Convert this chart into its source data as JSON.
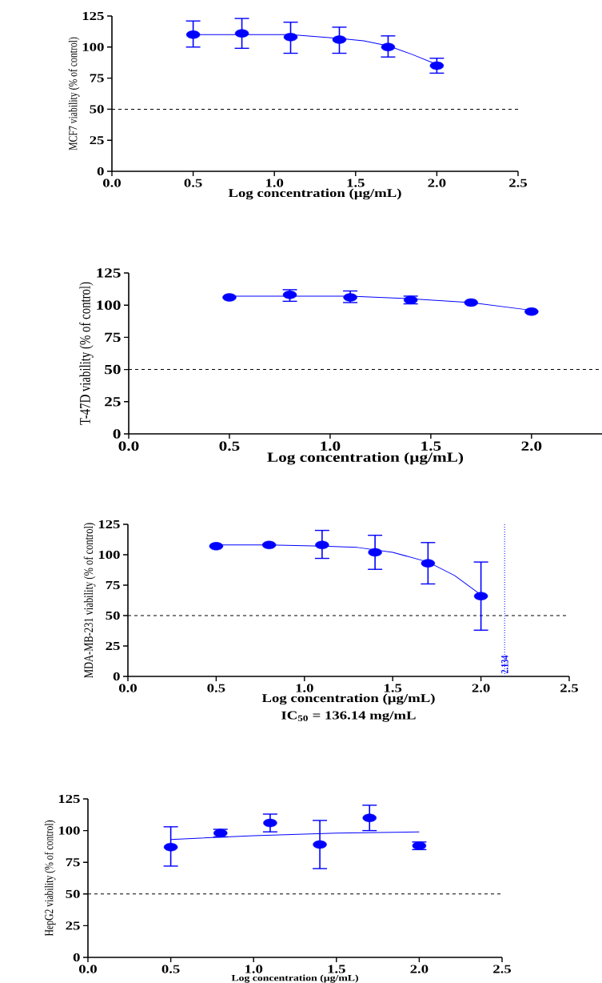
{
  "chart_data": [
    {
      "type": "scatter",
      "xlabel": "Log concentration (µg/mL)",
      "ylabel": "MCF7 viability (% of control)",
      "xlim": [
        0,
        2.5
      ],
      "xticks": [
        {
          "value": 0,
          "label": "0.0"
        },
        0.5,
        {
          "value": 1,
          "label": "1.0"
        },
        1.5,
        {
          "value": 2,
          "label": "2.0"
        },
        2.5
      ],
      "ylim": [
        0,
        125
      ],
      "yticks": [
        0,
        25,
        50,
        75,
        100,
        125
      ],
      "series": [
        {
          "type": "line",
          "color": "#0000ff",
          "marker": "none",
          "x": [
            0.5,
            0.8,
            1.1,
            1.4,
            1.55,
            1.7,
            1.85,
            2.0
          ],
          "values": [
            110,
            110,
            110,
            107,
            105,
            101,
            94,
            86
          ]
        },
        {
          "color": "#0000ff",
          "marker": "circle",
          "x": [
            0.5,
            0.8,
            1.1,
            1.4,
            1.7,
            2.0
          ],
          "values": [
            110,
            111,
            108,
            106,
            100,
            85
          ],
          "errors": [
            [
              100,
              121
            ],
            [
              99,
              123
            ],
            [
              95,
              120
            ],
            [
              95,
              116
            ],
            [
              92,
              109
            ],
            [
              79,
              91
            ]
          ]
        }
      ],
      "ref_lines": [
        {
          "axis": "y",
          "value": 50,
          "color": "#000000",
          "line_style": "dashed"
        }
      ]
    },
    {
      "type": "scatter",
      "xlabel": "Log concentration (µg/mL)",
      "ylabel": "T-47D viability (% of control)",
      "xlim": [
        0,
        2.35
      ],
      "xticks": [
        {
          "value": 0,
          "label": "0.0"
        },
        0.5,
        {
          "value": 1,
          "label": "1.0"
        },
        1.5,
        {
          "value": 2,
          "label": "2.0"
        }
      ],
      "ylim": [
        0,
        125
      ],
      "yticks": [
        0,
        25,
        50,
        75,
        100,
        125
      ],
      "series": [
        {
          "type": "line",
          "color": "#0000ff",
          "marker": "none",
          "x": [
            0.5,
            0.8,
            1.1,
            1.4,
            1.7,
            2.0
          ],
          "values": [
            107,
            107,
            107,
            105,
            102,
            96
          ]
        },
        {
          "color": "#0000ff",
          "marker": "circle",
          "x": [
            0.5,
            0.8,
            1.1,
            1.4,
            1.7,
            2.0
          ],
          "values": [
            106,
            108,
            106,
            104,
            102,
            95
          ],
          "errors": [
            null,
            [
              103,
              112
            ],
            [
              102,
              111
            ],
            [
              101,
              107
            ],
            null,
            null
          ]
        }
      ],
      "ref_lines": [
        {
          "axis": "y",
          "value": 50,
          "color": "#000000",
          "line_style": "dashed"
        }
      ]
    },
    {
      "type": "scatter",
      "xlabel": "Log concentration (µg/mL)",
      "ylabel": "MDA-MB-231 viability (% of control)",
      "xlim": [
        0,
        2.5
      ],
      "xticks": [
        {
          "value": 0,
          "label": "0.0"
        },
        0.5,
        {
          "value": 1,
          "label": "1.0"
        },
        1.5,
        {
          "value": 2,
          "label": "2.0"
        },
        2.5
      ],
      "ylim": [
        0,
        125
      ],
      "yticks": [
        0,
        25,
        50,
        75,
        100,
        125
      ],
      "series": [
        {
          "type": "line",
          "color": "#0000ff",
          "marker": "none",
          "x": [
            0.5,
            0.8,
            1.1,
            1.3,
            1.5,
            1.7,
            1.85,
            2.0
          ],
          "values": [
            108,
            108,
            107,
            106,
            102,
            94,
            83,
            67
          ]
        },
        {
          "color": "#0000ff",
          "marker": "circle",
          "x": [
            0.5,
            0.8,
            1.1,
            1.4,
            1.7,
            2.0
          ],
          "values": [
            107,
            108,
            108,
            102,
            93,
            66
          ],
          "errors": [
            null,
            null,
            [
              97,
              120
            ],
            [
              88,
              116
            ],
            [
              76,
              110
            ],
            [
              38,
              94
            ]
          ]
        }
      ],
      "ref_lines": [
        {
          "axis": "y",
          "value": 50,
          "color": "#000000",
          "line_style": "dashed"
        },
        {
          "axis": "x",
          "value": 2.134,
          "label": "2.134",
          "color": "#0000ff",
          "line_style": "dotted"
        }
      ],
      "annotations": [
        "**IC$_{50}$ = 136.14 mg/mL**"
      ]
    },
    {
      "type": "scatter",
      "xlabel": "Log concentration (µg/mL)",
      "ylabel": "HepG2 viability (% of control)",
      "xlim": [
        0,
        2.5
      ],
      "xticks": [
        {
          "value": 0,
          "label": "0.0"
        },
        0.5,
        {
          "value": 1,
          "label": "1.0"
        },
        1.5,
        {
          "value": 2,
          "label": "2.0"
        },
        2.5
      ],
      "ylim": [
        0,
        125
      ],
      "yticks": [
        0,
        25,
        50,
        75,
        100,
        125
      ],
      "series": [
        {
          "type": "line",
          "color": "#0000ff",
          "marker": "none",
          "x": [
            0.5,
            1.0,
            1.5,
            2.0
          ],
          "values": [
            93,
            96,
            98,
            99
          ]
        },
        {
          "color": "#0000ff",
          "marker": "circle",
          "x": [
            0.5,
            0.8,
            1.1,
            1.4,
            1.7,
            2.0
          ],
          "values": [
            87,
            98,
            106,
            89,
            110,
            88
          ],
          "errors": [
            [
              72,
              103
            ],
            [
              95,
              101
            ],
            [
              99,
              113
            ],
            [
              70,
              108
            ],
            [
              100,
              120
            ],
            [
              85,
              91
            ]
          ]
        }
      ],
      "ref_lines": [
        {
          "axis": "y",
          "value": 50,
          "color": "#000000",
          "line_style": "dashed"
        }
      ]
    }
  ]
}
